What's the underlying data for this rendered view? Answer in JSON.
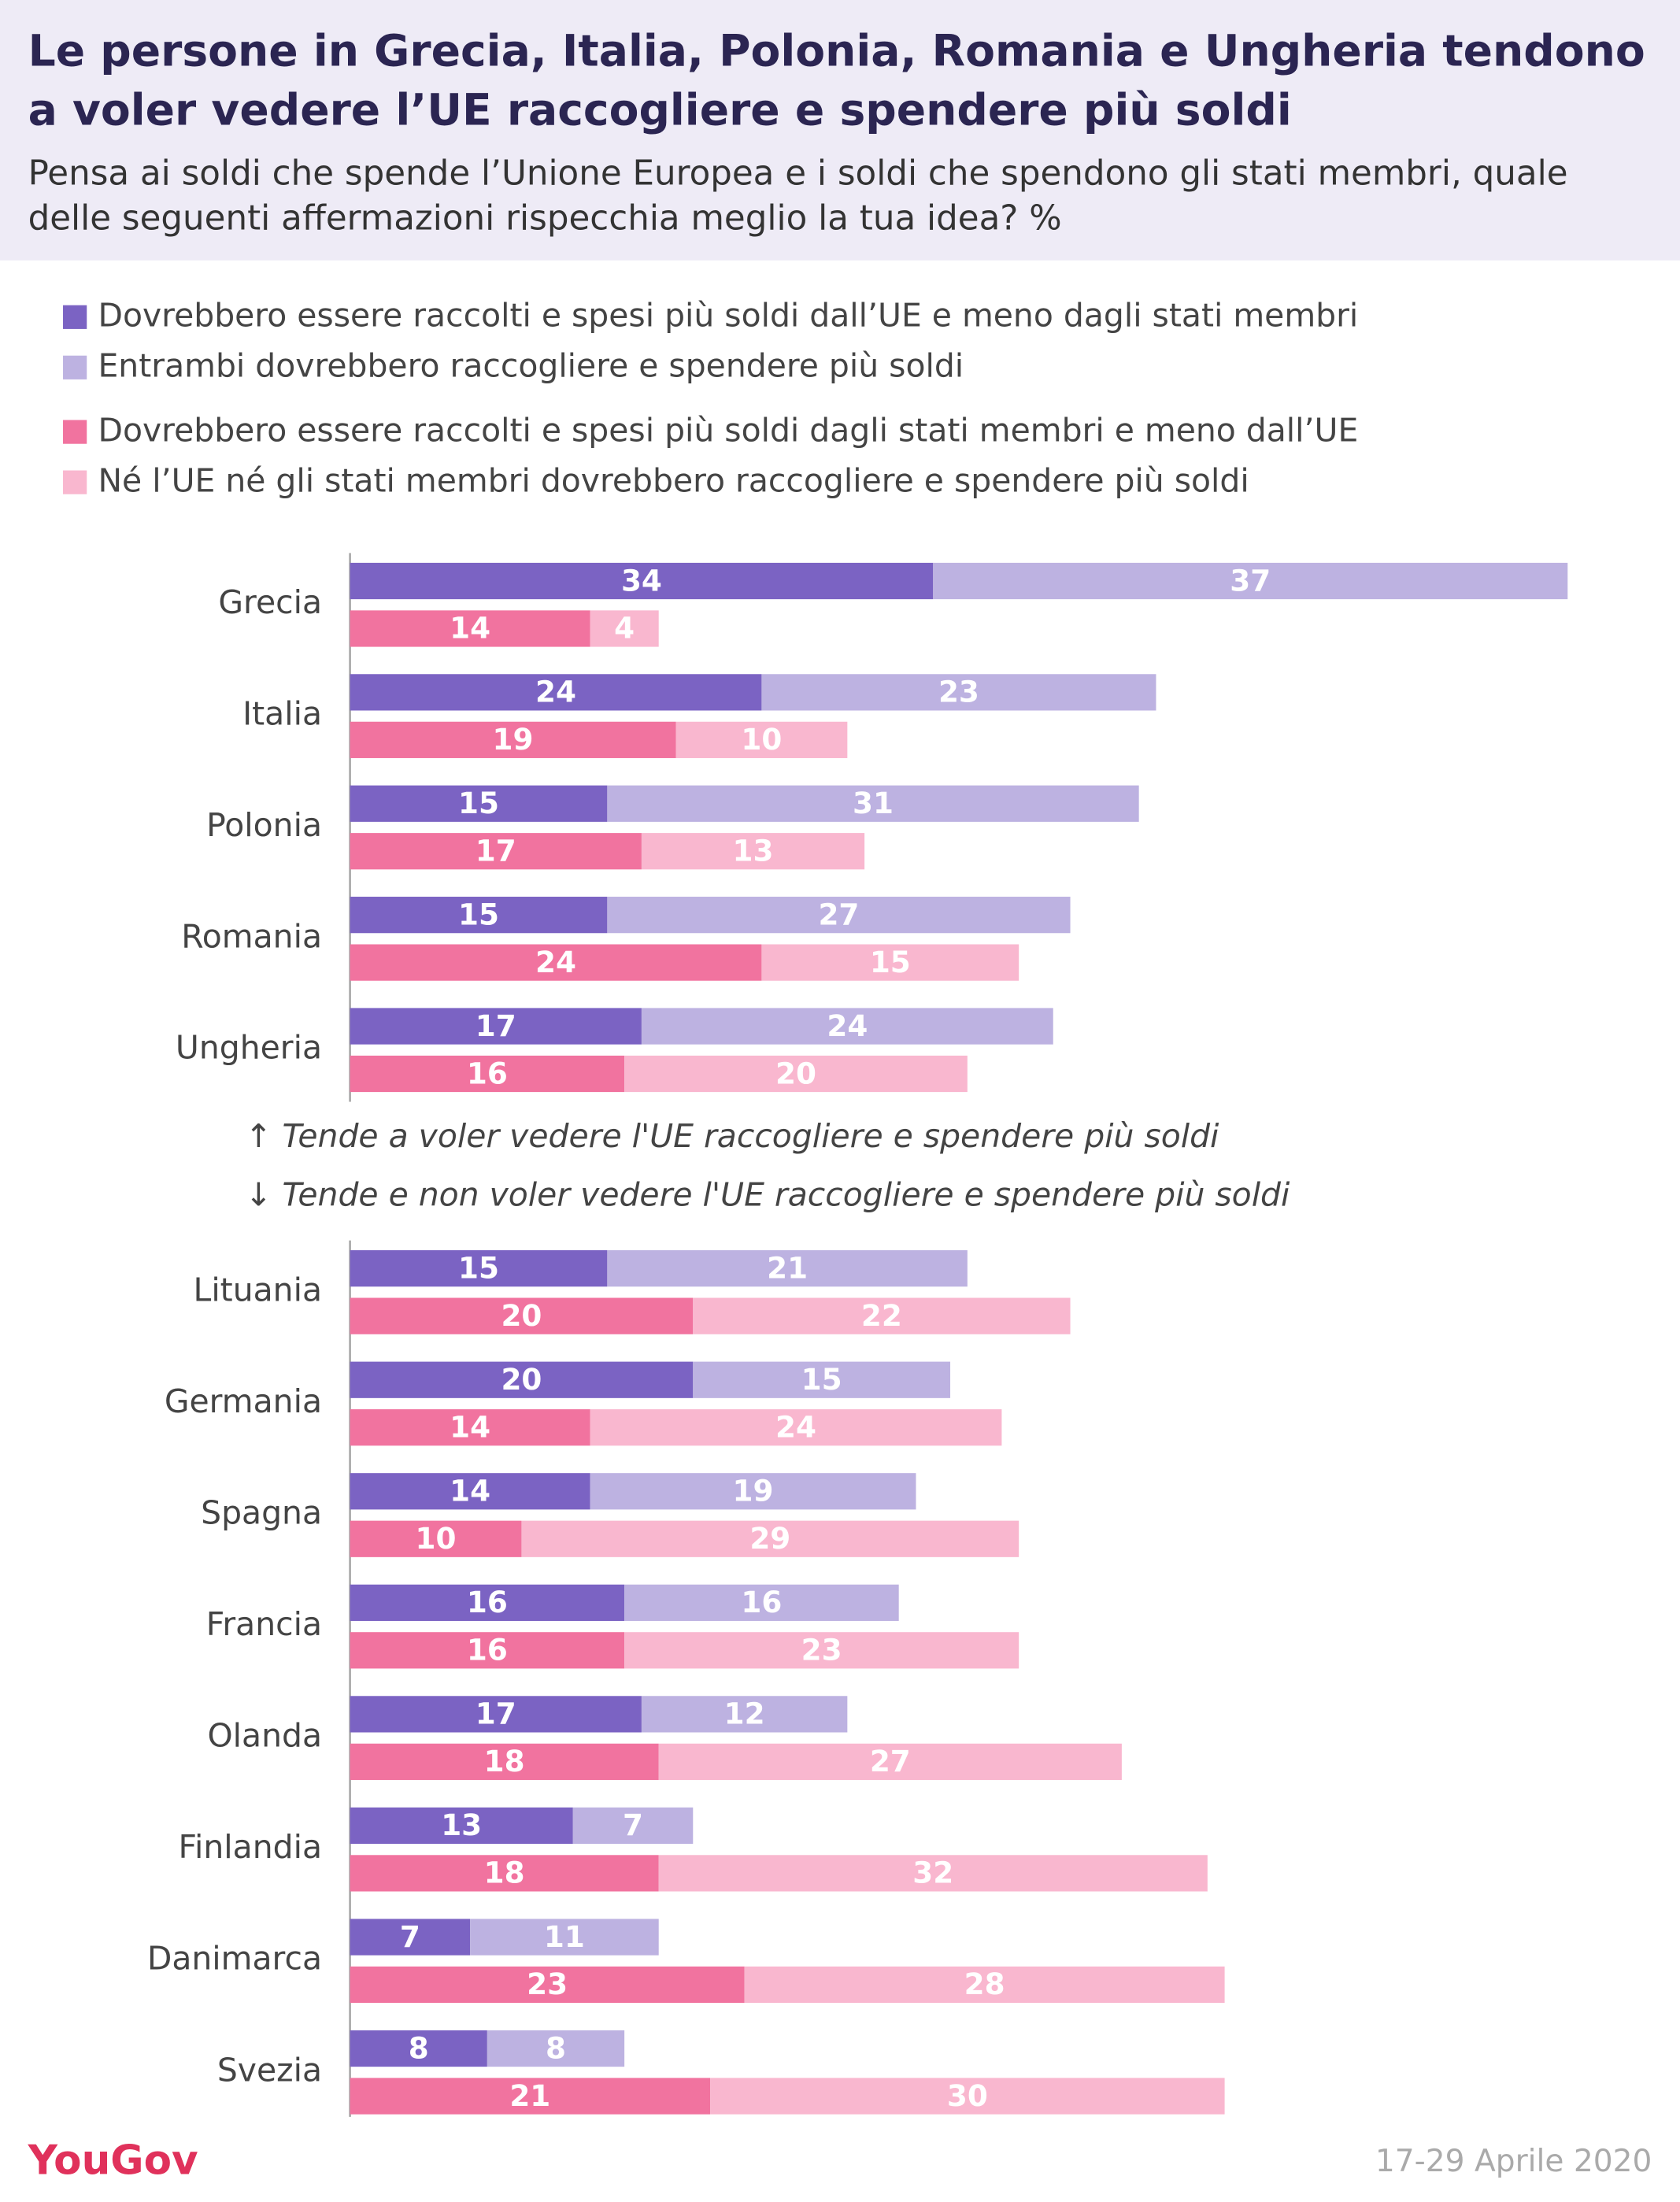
{
  "chart_data": {
    "type": "bar",
    "title": "Le persone in Grecia, Italia, Polonia, Romania e Ungheria tendono a voler vedere l’UE raccogliere e spendere più soldi",
    "subtitle": "Pensa ai soldi che spende l’Unione Europea e i soldi che spendono gli stati membri, quale delle seguenti affermazioni rispecchia meglio la tua idea? %",
    "categories": [
      "Grecia",
      "Italia",
      "Polonia",
      "Romania",
      "Ungheria",
      "Lituania",
      "Germania",
      "Spagna",
      "Francia",
      "Olanda",
      "Finlandia",
      "Danimarca",
      "Svezia"
    ],
    "series": [
      {
        "name": "Dovrebbero essere raccolti e spesi più soldi dall’UE e meno dagli stati membri",
        "color": "#7b63c3",
        "values": [
          34,
          24,
          15,
          15,
          17,
          15,
          20,
          14,
          16,
          17,
          13,
          7,
          8
        ]
      },
      {
        "name": "Entrambi dovrebbero raccogliere e spendere più soldi",
        "color": "#bdb2e1",
        "values": [
          37,
          23,
          31,
          27,
          24,
          21,
          15,
          19,
          16,
          12,
          7,
          11,
          8
        ]
      },
      {
        "name": "Dovrebbero essere raccolti e spesi più soldi dagli stati membri e meno dall’UE",
        "color": "#f1739f",
        "values": [
          14,
          19,
          17,
          24,
          16,
          20,
          14,
          10,
          16,
          18,
          18,
          23,
          21
        ]
      },
      {
        "name": "Né l’UE né gli stati membri dovrebbero raccogliere e spendere più soldi",
        "color": "#f9b7cf",
        "values": [
          4,
          10,
          13,
          15,
          20,
          22,
          24,
          29,
          23,
          27,
          32,
          28,
          30
        ]
      }
    ],
    "annotations": [
      "↑ Tende a voler vedere l'UE raccogliere e spendere più soldi",
      "↓ Tende e non voler vedere l'UE raccogliere e spendere più soldi"
    ],
    "source": "YouGov",
    "date": "17-29 Aprile 2020"
  }
}
